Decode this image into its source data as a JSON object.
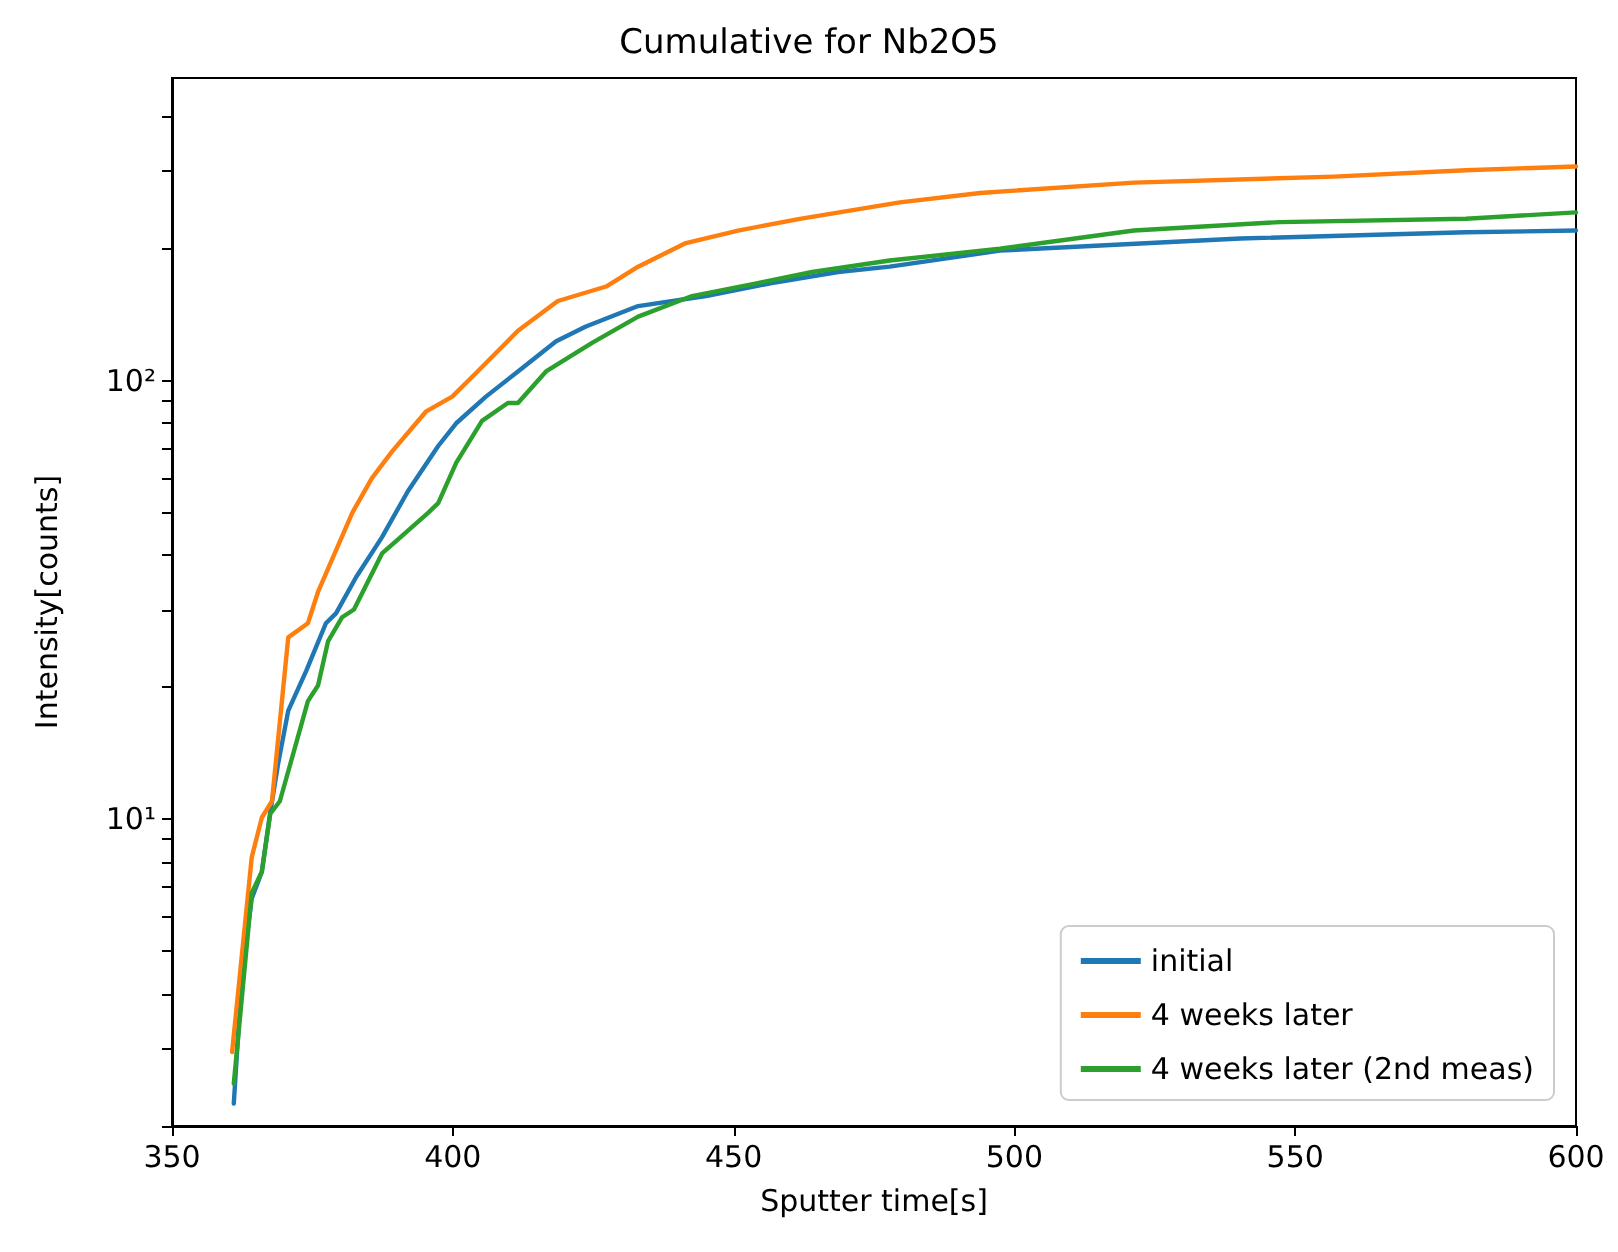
{
  "chart_data": {
    "type": "line",
    "title": "Cumulative for Nb2O5",
    "xlabel": "Sputter time[s]",
    "ylabel": "Intensity[counts]",
    "xlim": [
      350,
      600
    ],
    "xticks": [
      350,
      400,
      450,
      500,
      550,
      600
    ],
    "ylim": [
      2,
      490
    ],
    "yticks": [
      {
        "value": 2,
        "label": null
      },
      {
        "value": 3,
        "label": null
      },
      {
        "value": 4,
        "label": null
      },
      {
        "value": 5,
        "label": null
      },
      {
        "value": 6,
        "label": null
      },
      {
        "value": 7,
        "label": null
      },
      {
        "value": 8,
        "label": null
      },
      {
        "value": 9,
        "label": null
      },
      {
        "value": 10,
        "label": "10¹"
      },
      {
        "value": 20,
        "label": null
      },
      {
        "value": 30,
        "label": null
      },
      {
        "value": 40,
        "label": null
      },
      {
        "value": 50,
        "label": null
      },
      {
        "value": 60,
        "label": null
      },
      {
        "value": 70,
        "label": null
      },
      {
        "value": 80,
        "label": null
      },
      {
        "value": 90,
        "label": null
      },
      {
        "value": 100,
        "label": "10²"
      },
      {
        "value": 200,
        "label": null
      },
      {
        "value": 300,
        "label": null
      },
      {
        "value": 400,
        "label": null
      }
    ],
    "log": "y",
    "grid": false,
    "legend": "bottom right",
    "marker": "none",
    "line_style": "solid",
    "series": [
      {
        "name": "initial",
        "color": "#1f77b4",
        "x": [
          361,
          362.5,
          364.2,
          366,
          367.5,
          368.9,
          370.7,
          373.9,
          377.4,
          379.2,
          382.8,
          387.4,
          392,
          397.4,
          400.6,
          405.9,
          411.6,
          418.4,
          423.7,
          433,
          445.1,
          456.8,
          468.6,
          477.8,
          497.4,
          540.2,
          580.4,
          600
        ],
        "values": [
          2.25,
          4.5,
          6.6,
          7.6,
          10.4,
          13.4,
          17.7,
          21.8,
          28,
          29.5,
          35.7,
          44,
          56,
          71,
          80,
          92,
          105,
          123,
          133,
          148,
          156,
          167,
          177,
          182,
          198,
          211,
          218,
          220
        ]
      },
      {
        "name": "4 weeks later",
        "color": "#ff7f0e",
        "x": [
          360.7,
          364.2,
          366,
          367.8,
          370.7,
          374.2,
          376,
          382.1,
          385.6,
          389.2,
          395.2,
          399.9,
          404.1,
          411.6,
          418.7,
          427.3,
          433,
          441.5,
          450.8,
          461.8,
          479.6,
          493.9,
          521.3,
          556.9,
          580.4,
          600
        ],
        "values": [
          2.95,
          8.2,
          10.1,
          11,
          26,
          28,
          33,
          50,
          60,
          69,
          85,
          92,
          104,
          130,
          152,
          164,
          182,
          206,
          220,
          234,
          255,
          268,
          283,
          292,
          302,
          308
        ]
      },
      {
        "name": "4 weeks later (2nd meas)",
        "color": "#2ca02c",
        "x": [
          361,
          364.2,
          366,
          367.5,
          369.2,
          372.1,
          374.2,
          376,
          377.8,
          380.3,
          382.4,
          387.4,
          389.9,
          395.6,
          397.4,
          400.6,
          405.2,
          409.8,
          411.6,
          416.6,
          424.8,
          433,
          442.6,
          454.3,
          464,
          477.8,
          497.4,
          521.3,
          547.3,
          580.4,
          600
        ],
        "values": [
          2.5,
          6.8,
          7.6,
          10.3,
          11,
          14.9,
          18.6,
          20.2,
          25.5,
          28.9,
          30.1,
          40.4,
          43.1,
          50,
          52.6,
          65,
          81,
          89,
          89,
          105,
          122,
          140,
          156,
          167,
          177,
          188,
          200,
          220,
          230,
          234,
          242
        ]
      }
    ]
  }
}
